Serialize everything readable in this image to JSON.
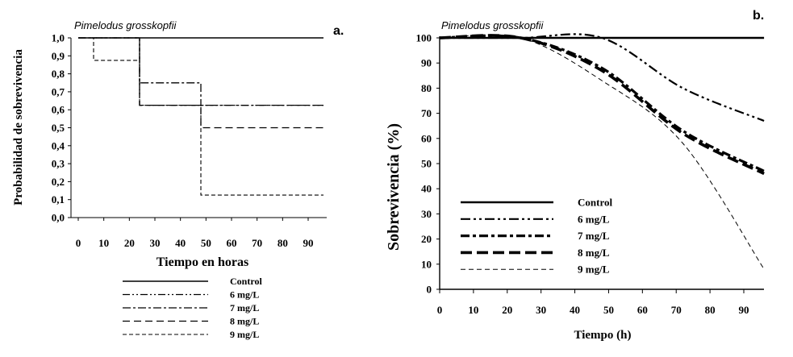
{
  "chart_data": [
    {
      "type": "line",
      "panel_label": "a.",
      "species_label": "Pimelodus grosskopfii",
      "xlabel": "Tiempo en horas",
      "ylabel": "Probabilidad de sobrevivencia",
      "xlim": [
        -4,
        96
      ],
      "ylim": [
        0,
        1
      ],
      "xticks": [
        0,
        10,
        20,
        30,
        40,
        50,
        60,
        70,
        80,
        90
      ],
      "yticks": [
        "0,0",
        "0,1",
        "0,2",
        "0,3",
        "0,4",
        "0,5",
        "0,6",
        "0,7",
        "0,8",
        "0,9",
        "1,0"
      ],
      "grid": false,
      "legend_position": "bottom",
      "series": [
        {
          "name": "Control",
          "style": "solid",
          "x": [
            0,
            96
          ],
          "y": [
            1.0,
            1.0
          ]
        },
        {
          "name": "6 mg/L",
          "style": "dashdotdot",
          "x": [
            0,
            24,
            24,
            96
          ],
          "y": [
            1.0,
            1.0,
            0.625,
            0.625
          ]
        },
        {
          "name": "7 mg/L",
          "style": "dashdot",
          "x": [
            0,
            24,
            24,
            48,
            48,
            96
          ],
          "y": [
            1.0,
            1.0,
            0.75,
            0.75,
            0.625,
            0.625
          ]
        },
        {
          "name": "8 mg/L",
          "style": "dash",
          "x": [
            0,
            24,
            24,
            48,
            48,
            96
          ],
          "y": [
            1.0,
            1.0,
            0.625,
            0.625,
            0.5,
            0.5
          ]
        },
        {
          "name": "9 mg/L",
          "style": "shortdash",
          "x": [
            0,
            6,
            6,
            24,
            24,
            48,
            48,
            96
          ],
          "y": [
            1.0,
            1.0,
            0.875,
            0.875,
            0.625,
            0.625,
            0.125,
            0.125
          ]
        }
      ]
    },
    {
      "type": "line",
      "panel_label": "b.",
      "species_label": "Pimelodus grosskopfii",
      "xlabel": "Tiempo (h)",
      "ylabel": "Sobrevivencia (%)",
      "xlim": [
        0,
        96
      ],
      "ylim": [
        0,
        100
      ],
      "xticks": [
        0,
        10,
        20,
        30,
        40,
        50,
        60,
        70,
        80,
        90
      ],
      "yticks": [
        0,
        10,
        20,
        30,
        40,
        50,
        60,
        70,
        80,
        90,
        100
      ],
      "grid": false,
      "legend_position": "bottom-left",
      "series": [
        {
          "name": "Control",
          "style": "solid",
          "x": [
            0,
            24,
            48,
            72,
            96
          ],
          "y": [
            100,
            100,
            100,
            100,
            100
          ]
        },
        {
          "name": "6 mg/L",
          "style": "dashdotdot",
          "x": [
            0,
            24,
            48,
            72,
            96
          ],
          "y": [
            100,
            100,
            100,
            80,
            67
          ]
        },
        {
          "name": "7 mg/L",
          "style": "dashdot",
          "x": [
            0,
            24,
            48,
            72,
            96
          ],
          "y": [
            100,
            100,
            88,
            63,
            47
          ]
        },
        {
          "name": "8 mg/L",
          "style": "longdash",
          "x": [
            0,
            24,
            48,
            72,
            96
          ],
          "y": [
            100,
            100,
            87,
            62,
            46
          ]
        },
        {
          "name": "9 mg/L",
          "style": "thindash",
          "x": [
            0,
            24,
            48,
            72,
            96
          ],
          "y": [
            100,
            100,
            83,
            58,
            8
          ]
        }
      ]
    }
  ]
}
